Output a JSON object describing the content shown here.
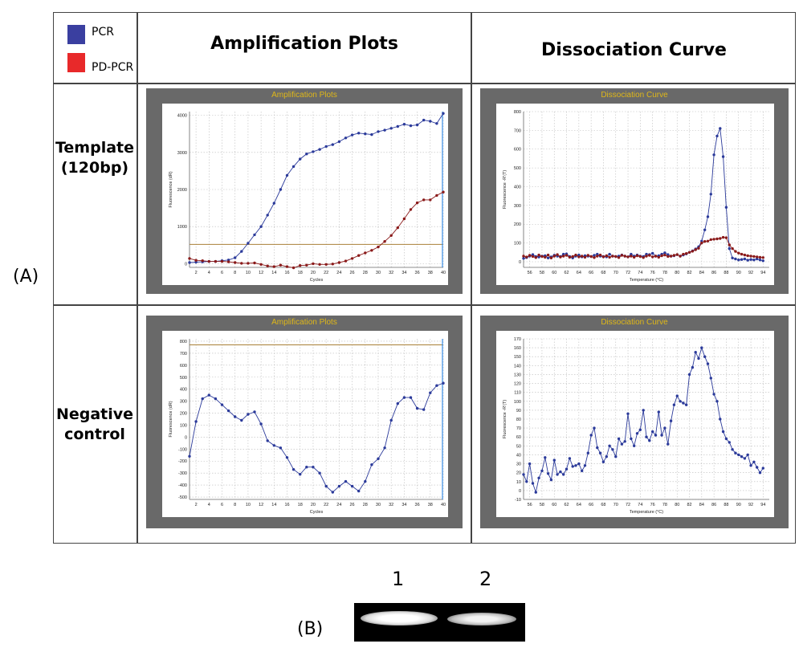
{
  "legend": [
    {
      "label": "PCR",
      "color": "#3a3fa0"
    },
    {
      "label": "PD-PCR",
      "color": "#e8292a"
    }
  ],
  "headers": {
    "amp": "Amplification Plots",
    "diss": "Dissociation Curve"
  },
  "rows": {
    "template": "Template\n(120bp)",
    "negative": "Negative\ncontrol"
  },
  "section_labels": {
    "a": "(A)",
    "b": "(B)"
  },
  "gel": {
    "lanes": [
      "1",
      "2"
    ]
  },
  "chart_data": [
    {
      "id": "amp_template",
      "type": "line",
      "title": "Amplification Plots",
      "xlabel": "Cycles",
      "ylabel": "Fluorescence (dR)",
      "xlim": [
        1,
        40
      ],
      "ylim": [
        -100,
        4100
      ],
      "xticks": [
        "2",
        "4",
        "6",
        "8",
        "10",
        "12",
        "14",
        "16",
        "18",
        "20",
        "22",
        "24",
        "26",
        "28",
        "30",
        "32",
        "34",
        "36",
        "38",
        "40"
      ],
      "yticks": [
        "0",
        "1000",
        "2000",
        "3000",
        "4000"
      ],
      "threshold": 520,
      "series": [
        {
          "name": "PCR",
          "color": "#2b3a9a",
          "x": [
            1,
            2,
            3,
            4,
            5,
            6,
            7,
            8,
            9,
            10,
            11,
            12,
            13,
            14,
            15,
            16,
            17,
            18,
            19,
            20,
            21,
            22,
            23,
            24,
            25,
            26,
            27,
            28,
            29,
            30,
            31,
            32,
            33,
            34,
            35,
            36,
            37,
            38,
            39,
            40
          ],
          "y": [
            30,
            40,
            50,
            60,
            60,
            80,
            100,
            160,
            330,
            550,
            780,
            1000,
            1310,
            1630,
            2000,
            2380,
            2620,
            2820,
            2960,
            3020,
            3080,
            3160,
            3210,
            3290,
            3390,
            3470,
            3520,
            3500,
            3480,
            3560,
            3600,
            3650,
            3700,
            3760,
            3720,
            3740,
            3870,
            3840,
            3780,
            4050
          ]
        },
        {
          "name": "PD-PCR",
          "color": "#8a1a1a",
          "x": [
            1,
            2,
            3,
            4,
            5,
            6,
            7,
            8,
            9,
            10,
            11,
            12,
            13,
            14,
            15,
            16,
            17,
            18,
            19,
            20,
            21,
            22,
            23,
            24,
            25,
            26,
            27,
            28,
            29,
            30,
            31,
            32,
            33,
            34,
            35,
            36,
            37,
            38,
            39,
            40
          ],
          "y": [
            140,
            90,
            80,
            60,
            60,
            60,
            50,
            30,
            10,
            10,
            20,
            -20,
            -60,
            -80,
            -40,
            -80,
            -110,
            -50,
            -40,
            0,
            -20,
            -20,
            -10,
            30,
            70,
            140,
            220,
            290,
            360,
            450,
            600,
            760,
            970,
            1210,
            1460,
            1640,
            1720,
            1720,
            1840,
            1930
          ]
        }
      ]
    },
    {
      "id": "diss_template",
      "type": "line",
      "title": "Dissociation Curve",
      "xlabel": "Temperature (°C)",
      "ylabel": "Fluorescence -R'(T)",
      "xlim": [
        55,
        95
      ],
      "ylim": [
        -30,
        800
      ],
      "xticks": [
        "56",
        "58",
        "60",
        "62",
        "64",
        "66",
        "68",
        "70",
        "72",
        "74",
        "76",
        "78",
        "80",
        "82",
        "84",
        "86",
        "88",
        "90",
        "92",
        "94"
      ],
      "yticks": [
        "0",
        "100",
        "200",
        "300",
        "400",
        "500",
        "600",
        "700",
        "800"
      ],
      "series": [
        {
          "name": "PCR",
          "color": "#2b3a9a",
          "x": [
            55,
            55.5,
            56,
            56.5,
            57,
            57.5,
            58,
            58.5,
            59,
            59.5,
            60,
            60.5,
            61,
            61.5,
            62,
            62.5,
            63,
            63.5,
            64,
            64.5,
            65,
            65.5,
            66,
            66.5,
            67,
            67.5,
            68,
            68.5,
            69,
            69.5,
            70,
            70.5,
            71,
            71.5,
            72,
            72.5,
            73,
            73.5,
            74,
            74.5,
            75,
            75.5,
            76,
            76.5,
            77,
            77.5,
            78,
            78.5,
            79,
            79.5,
            80,
            80.5,
            81,
            81.5,
            82,
            82.5,
            83,
            83.5,
            84,
            84.5,
            85,
            85.5,
            86,
            86.5,
            87,
            87.5,
            88,
            88.5,
            89,
            89.5,
            90,
            90.5,
            91,
            91.5,
            92,
            92.5,
            93,
            93.5,
            94
          ],
          "y": [
            18,
            22,
            30,
            38,
            28,
            25,
            30,
            32,
            20,
            26,
            35,
            30,
            28,
            40,
            42,
            28,
            20,
            30,
            36,
            26,
            32,
            30,
            28,
            34,
            40,
            30,
            28,
            26,
            40,
            30,
            28,
            30,
            36,
            30,
            26,
            40,
            30,
            36,
            30,
            28,
            40,
            38,
            45,
            30,
            32,
            40,
            48,
            38,
            30,
            32,
            38,
            30,
            36,
            42,
            50,
            58,
            68,
            80,
            110,
            170,
            240,
            360,
            570,
            670,
            710,
            560,
            290,
            70,
            20,
            15,
            10,
            12,
            15,
            8,
            12,
            10,
            15,
            10,
            5
          ]
        },
        {
          "name": "PD-PCR",
          "color": "#8a1a1a",
          "x": [
            55,
            55.5,
            56,
            56.5,
            57,
            57.5,
            58,
            58.5,
            59,
            59.5,
            60,
            60.5,
            61,
            61.5,
            62,
            62.5,
            63,
            63.5,
            64,
            64.5,
            65,
            65.5,
            66,
            66.5,
            67,
            67.5,
            68,
            68.5,
            69,
            69.5,
            70,
            70.5,
            71,
            71.5,
            72,
            72.5,
            73,
            73.5,
            74,
            74.5,
            75,
            75.5,
            76,
            76.5,
            77,
            77.5,
            78,
            78.5,
            79,
            79.5,
            80,
            80.5,
            81,
            81.5,
            82,
            82.5,
            83,
            83.5,
            84,
            84.5,
            85,
            85.5,
            86,
            86.5,
            87,
            87.5,
            88,
            88.5,
            89,
            89.5,
            90,
            90.5,
            91,
            91.5,
            92,
            92.5,
            93,
            93.5,
            94
          ],
          "y": [
            30,
            25,
            34,
            28,
            22,
            36,
            28,
            24,
            36,
            20,
            30,
            38,
            25,
            30,
            34,
            24,
            28,
            36,
            26,
            30,
            24,
            34,
            28,
            22,
            30,
            36,
            26,
            32,
            24,
            30,
            28,
            22,
            34,
            30,
            26,
            30,
            24,
            32,
            28,
            22,
            30,
            34,
            26,
            30,
            24,
            32,
            36,
            28,
            30,
            34,
            38,
            30,
            40,
            44,
            50,
            56,
            64,
            72,
            100,
            108,
            110,
            118,
            120,
            122,
            124,
            130,
            128,
            90,
            70,
            55,
            46,
            40,
            36,
            32,
            30,
            28,
            26,
            24,
            22
          ]
        }
      ]
    },
    {
      "id": "amp_negative",
      "type": "line",
      "title": "Amplification Plots",
      "xlabel": "Cycles",
      "ylabel": "Fluorescence (dR)",
      "xlim": [
        1,
        40
      ],
      "ylim": [
        -520,
        820
      ],
      "xticks": [
        "2",
        "4",
        "6",
        "8",
        "10",
        "12",
        "14",
        "16",
        "18",
        "20",
        "22",
        "24",
        "26",
        "28",
        "30",
        "32",
        "34",
        "36",
        "38",
        "40"
      ],
      "yticks": [
        "-500",
        "-400",
        "-300",
        "-200",
        "-100",
        "0",
        "100",
        "200",
        "300",
        "400",
        "500",
        "600",
        "700",
        "800"
      ],
      "threshold": 770,
      "series": [
        {
          "name": "PCR",
          "color": "#2b3a9a",
          "x": [
            1,
            2,
            3,
            4,
            5,
            6,
            7,
            8,
            9,
            10,
            11,
            12,
            13,
            14,
            15,
            16,
            17,
            18,
            19,
            20,
            21,
            22,
            23,
            24,
            25,
            26,
            27,
            28,
            29,
            30,
            31,
            32,
            33,
            34,
            35,
            36,
            37,
            38,
            39,
            40
          ],
          "y": [
            -160,
            130,
            320,
            350,
            320,
            270,
            220,
            170,
            140,
            190,
            210,
            110,
            -30,
            -70,
            -90,
            -170,
            -270,
            -310,
            -250,
            -250,
            -300,
            -410,
            -460,
            -410,
            -370,
            -410,
            -450,
            -370,
            -230,
            -180,
            -90,
            140,
            280,
            330,
            330,
            240,
            230,
            370,
            430,
            450
          ]
        }
      ]
    },
    {
      "id": "diss_negative",
      "type": "line",
      "title": "Dissociation Curve",
      "xlabel": "Temperature (°C)",
      "ylabel": "Fluorescence -R'(T)",
      "xlim": [
        55,
        95
      ],
      "ylim": [
        -10,
        170
      ],
      "xticks": [
        "56",
        "58",
        "60",
        "62",
        "64",
        "66",
        "68",
        "70",
        "72",
        "74",
        "76",
        "78",
        "80",
        "82",
        "84",
        "86",
        "88",
        "90",
        "92",
        "94"
      ],
      "yticks": [
        "-10",
        "0",
        "10",
        "20",
        "30",
        "40",
        "50",
        "60",
        "70",
        "80",
        "90",
        "100",
        "110",
        "120",
        "130",
        "140",
        "150",
        "160",
        "170"
      ],
      "series": [
        {
          "name": "PCR",
          "color": "#2b3a9a",
          "x": [
            55,
            55.5,
            56,
            56.5,
            57,
            57.5,
            58,
            58.5,
            59,
            59.5,
            60,
            60.5,
            61,
            61.5,
            62,
            62.5,
            63,
            63.5,
            64,
            64.5,
            65,
            65.5,
            66,
            66.5,
            67,
            67.5,
            68,
            68.5,
            69,
            69.5,
            70,
            70.5,
            71,
            71.5,
            72,
            72.5,
            73,
            73.5,
            74,
            74.5,
            75,
            75.5,
            76,
            76.5,
            77,
            77.5,
            78,
            78.5,
            79,
            79.5,
            80,
            80.5,
            81,
            81.5,
            82,
            82.5,
            83,
            83.5,
            84,
            84.5,
            85,
            85.5,
            86,
            86.5,
            87,
            87.5,
            88,
            88.5,
            89,
            89.5,
            90,
            90.5,
            91,
            91.5,
            92,
            92.5,
            93,
            93.5,
            94
          ],
          "y": [
            18,
            10,
            30,
            8,
            -2,
            14,
            22,
            37,
            19,
            12,
            34,
            18,
            21,
            18,
            24,
            36,
            27,
            28,
            30,
            22,
            28,
            42,
            62,
            70,
            48,
            42,
            32,
            38,
            50,
            46,
            38,
            58,
            52,
            55,
            86,
            58,
            50,
            64,
            68,
            90,
            60,
            56,
            66,
            62,
            88,
            62,
            70,
            52,
            78,
            96,
            106,
            100,
            98,
            96,
            130,
            138,
            155,
            148,
            160,
            150,
            142,
            126,
            108,
            100,
            80,
            66,
            58,
            54,
            46,
            42,
            40,
            38,
            36,
            40,
            28,
            32,
            26,
            20,
            25
          ]
        }
      ]
    }
  ]
}
